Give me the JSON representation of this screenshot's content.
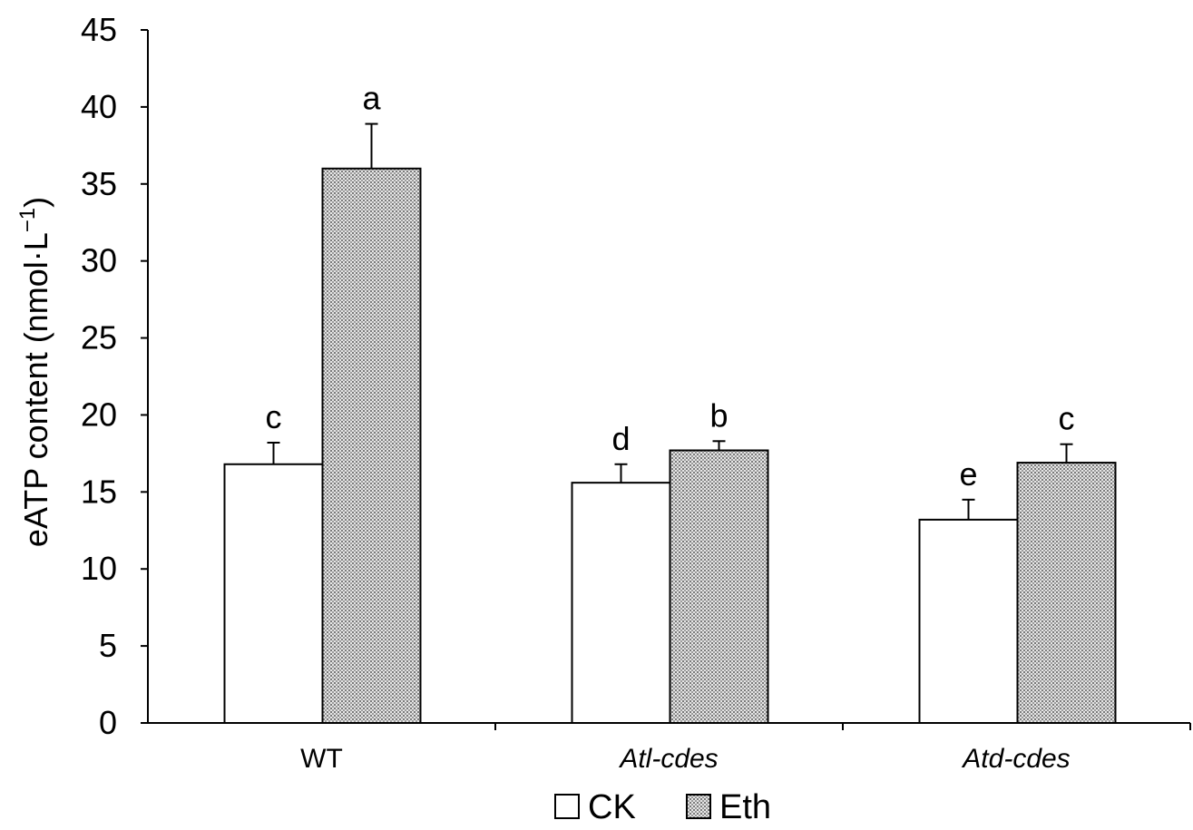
{
  "chart_data": {
    "type": "bar",
    "categories": [
      "WT",
      "Atl-cdes",
      "Atd-cdes"
    ],
    "category_italic": [
      false,
      true,
      true
    ],
    "series": [
      {
        "name": "CK",
        "values": [
          16.8,
          15.6,
          13.2
        ],
        "errors": [
          1.4,
          1.2,
          1.3
        ],
        "letters": [
          "c",
          "d",
          "e"
        ],
        "fill": "#ffffff"
      },
      {
        "name": "Eth",
        "values": [
          36.0,
          17.7,
          16.9
        ],
        "errors": [
          2.9,
          0.6,
          1.2
        ],
        "letters": [
          "a",
          "b",
          "c"
        ],
        "fill": "#bfbfbf"
      }
    ],
    "ylabel": "eATP content (nmol·L⁻¹)",
    "ylabel_main": "eATP content (nmol·L",
    "ylabel_sup": "−1",
    "ylabel_close": ")",
    "ylim": [
      0,
      45
    ],
    "yticks": [
      "0",
      "5",
      "10",
      "15",
      "20",
      "25",
      "30",
      "35",
      "40",
      "45"
    ],
    "legend_position": "bottom-center",
    "grid": false
  }
}
